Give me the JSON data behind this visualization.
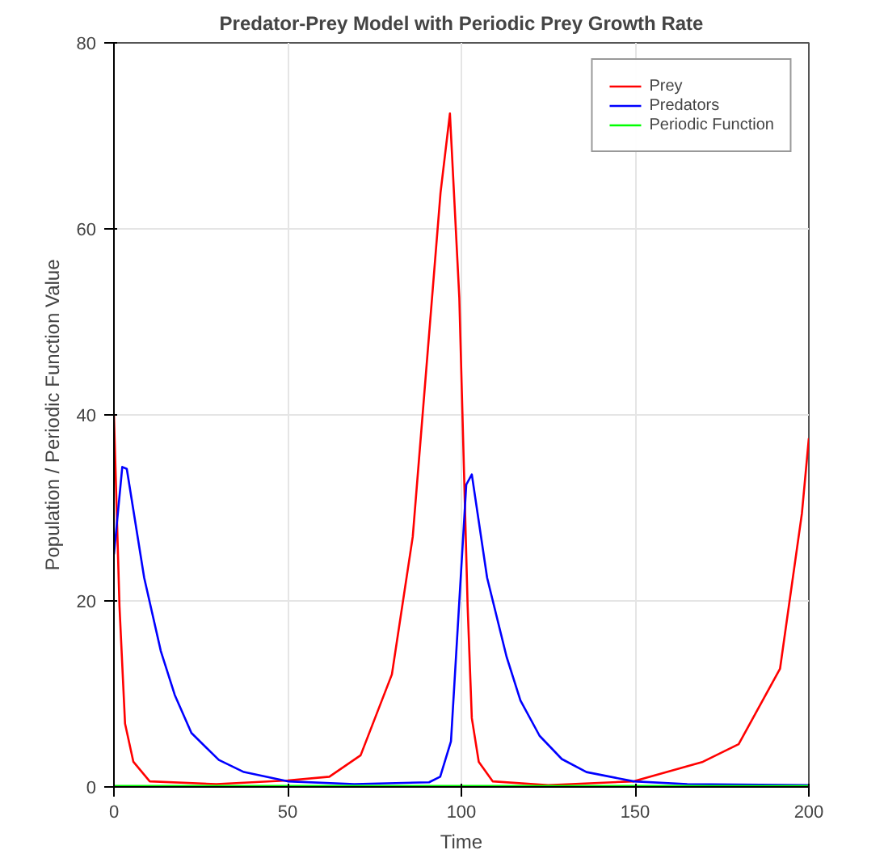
{
  "chart_data": {
    "type": "line",
    "title": "Predator-Prey Model with Periodic Prey Growth Rate",
    "xlabel": "Time",
    "ylabel": "Population / Periodic Function Value",
    "xlim": [
      0,
      200
    ],
    "ylim": [
      0,
      80
    ],
    "xticks": [
      0,
      50,
      100,
      150,
      200
    ],
    "yticks": [
      0,
      20,
      40,
      60,
      80
    ],
    "grid": true,
    "legend": "top right",
    "series": [
      {
        "name": "Prey",
        "color": "#ff0000",
        "x": [
          0,
          1.6,
          3.2,
          5.6,
          10.3,
          29.5,
          50,
          62,
          71,
          80,
          86,
          94,
          96.7,
          99.4,
          101.8,
          103,
          105,
          109,
          125,
          149.6,
          169.5,
          179.8,
          191.7,
          198,
          200
        ],
        "values": [
          40,
          19.4,
          6.8,
          2.7,
          0.6,
          0.3,
          0.7,
          1.1,
          3.4,
          12.1,
          26.9,
          63.9,
          72.4,
          52.6,
          19.4,
          7.4,
          2.7,
          0.6,
          0.2,
          0.6,
          2.7,
          4.6,
          12.7,
          29.4,
          37.5
        ]
      },
      {
        "name": "Predators",
        "color": "#0000ff",
        "x": [
          0,
          2.4,
          3.7,
          8.7,
          13.5,
          17.5,
          22.3,
          30.2,
          37.4,
          50,
          69.2,
          90.7,
          93.9,
          97,
          101.4,
          103,
          107.4,
          113,
          117,
          122.5,
          128.9,
          136,
          149.6,
          165,
          200
        ],
        "values": [
          25,
          34.4,
          34.2,
          22.5,
          14.6,
          9.9,
          5.8,
          2.9,
          1.6,
          0.6,
          0.3,
          0.5,
          1.1,
          4.9,
          32.5,
          33.6,
          22.5,
          14,
          9.3,
          5.5,
          3,
          1.6,
          0.6,
          0.3,
          0.2
        ]
      },
      {
        "name": "Periodic Function",
        "color": "#00ff00",
        "x": [
          0,
          50,
          100,
          150,
          200
        ],
        "values": [
          0.1,
          0.1,
          0.1,
          0.1,
          0.1
        ]
      }
    ]
  }
}
